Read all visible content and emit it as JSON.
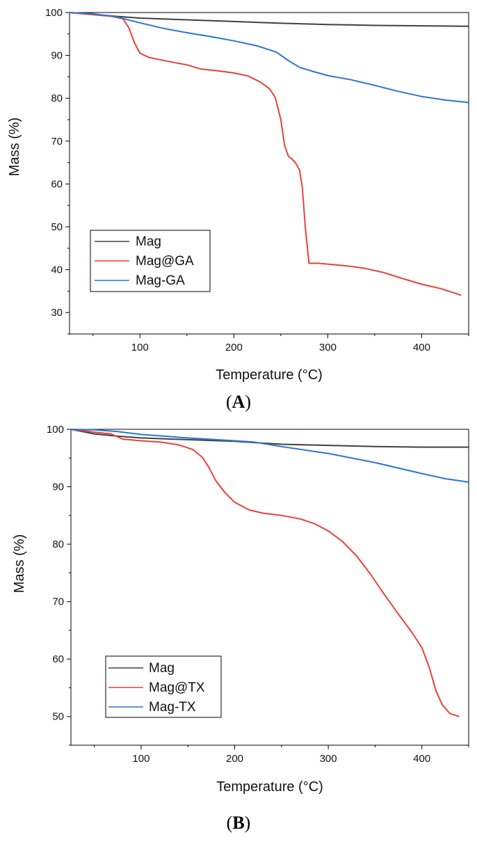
{
  "chart_data": [
    {
      "type": "line",
      "panel_label": "A",
      "xlabel": "Temperature (°C)",
      "ylabel": "Mass (%)",
      "xlim": [
        25,
        450
      ],
      "ylim": [
        25,
        100
      ],
      "xticks": [
        100,
        200,
        300,
        400
      ],
      "yticks": [
        30,
        40,
        50,
        60,
        70,
        80,
        90,
        100
      ],
      "legend_position": "bottom-left",
      "series": [
        {
          "name": "Mag",
          "color": "#404040",
          "points": [
            [
              25,
              100
            ],
            [
              50,
              99.6
            ],
            [
              75,
              99.1
            ],
            [
              100,
              98.7
            ],
            [
              150,
              98.3
            ],
            [
              200,
              97.9
            ],
            [
              250,
              97.5
            ],
            [
              300,
              97.2
            ],
            [
              350,
              97.0
            ],
            [
              400,
              96.9
            ],
            [
              450,
              96.8
            ]
          ]
        },
        {
          "name": "Mag@GA",
          "color": "#e8403a",
          "points": [
            [
              25,
              100
            ],
            [
              50,
              99.5
            ],
            [
              70,
              99.1
            ],
            [
              82,
              98.5
            ],
            [
              88,
              96.5
            ],
            [
              94,
              93
            ],
            [
              100,
              90.5
            ],
            [
              110,
              89.5
            ],
            [
              130,
              88.6
            ],
            [
              150,
              87.8
            ],
            [
              165,
              86.8
            ],
            [
              180,
              86.5
            ],
            [
              200,
              85.9
            ],
            [
              215,
              85.2
            ],
            [
              228,
              83.8
            ],
            [
              238,
              82.2
            ],
            [
              244,
              80.2
            ],
            [
              250,
              75
            ],
            [
              254,
              69
            ],
            [
              258,
              66.5
            ],
            [
              262,
              65.8
            ],
            [
              266,
              64.8
            ],
            [
              270,
              63.2
            ],
            [
              273,
              59
            ],
            [
              276,
              50
            ],
            [
              280,
              41.5
            ],
            [
              290,
              41.5
            ],
            [
              300,
              41.3
            ],
            [
              320,
              40.9
            ],
            [
              340,
              40.3
            ],
            [
              360,
              39.3
            ],
            [
              380,
              37.9
            ],
            [
              400,
              36.6
            ],
            [
              420,
              35.6
            ],
            [
              440,
              34.2
            ],
            [
              442,
              34
            ]
          ]
        },
        {
          "name": "Mag-GA",
          "color": "#2a74d4",
          "points": [
            [
              25,
              100
            ],
            [
              50,
              99.7
            ],
            [
              75,
              99
            ],
            [
              100,
              97.6
            ],
            [
              125,
              96.3
            ],
            [
              150,
              95.3
            ],
            [
              175,
              94.4
            ],
            [
              200,
              93.4
            ],
            [
              225,
              92.2
            ],
            [
              245,
              90.8
            ],
            [
              258,
              88.8
            ],
            [
              270,
              87.2
            ],
            [
              285,
              86.2
            ],
            [
              300,
              85.3
            ],
            [
              325,
              84.3
            ],
            [
              350,
              83.0
            ],
            [
              375,
              81.6
            ],
            [
              400,
              80.4
            ],
            [
              425,
              79.6
            ],
            [
              450,
              79.0
            ]
          ]
        }
      ]
    },
    {
      "type": "line",
      "panel_label": "B",
      "xlabel": "Temperature (°C)",
      "ylabel": "Mass (%)",
      "xlim": [
        25,
        450
      ],
      "ylim": [
        45,
        100
      ],
      "xticks": [
        100,
        200,
        300,
        400
      ],
      "yticks": [
        50,
        60,
        70,
        80,
        90,
        100
      ],
      "legend_position": "bottom-left",
      "series": [
        {
          "name": "Mag",
          "color": "#404040",
          "points": [
            [
              25,
              100
            ],
            [
              50,
              99.2
            ],
            [
              75,
              98.8
            ],
            [
              100,
              98.5
            ],
            [
              150,
              98.2
            ],
            [
              200,
              97.9
            ],
            [
              250,
              97.4
            ],
            [
              300,
              97.2
            ],
            [
              350,
              97.0
            ],
            [
              400,
              96.9
            ],
            [
              450,
              96.9
            ]
          ]
        },
        {
          "name": "Mag@TX",
          "color": "#e8403a",
          "points": [
            [
              25,
              100
            ],
            [
              50,
              99.5
            ],
            [
              68,
              99.2
            ],
            [
              80,
              98.3
            ],
            [
              100,
              98
            ],
            [
              120,
              97.8
            ],
            [
              140,
              97.3
            ],
            [
              155,
              96.5
            ],
            [
              165,
              95.2
            ],
            [
              172,
              93.5
            ],
            [
              180,
              91
            ],
            [
              190,
              88.9
            ],
            [
              200,
              87.3
            ],
            [
              215,
              86
            ],
            [
              230,
              85.4
            ],
            [
              250,
              85
            ],
            [
              270,
              84.4
            ],
            [
              285,
              83.6
            ],
            [
              300,
              82.3
            ],
            [
              315,
              80.5
            ],
            [
              330,
              78
            ],
            [
              345,
              74.8
            ],
            [
              360,
              71.2
            ],
            [
              375,
              67.8
            ],
            [
              390,
              64.5
            ],
            [
              400,
              62
            ],
            [
              408,
              58.5
            ],
            [
              415,
              54.5
            ],
            [
              422,
              52
            ],
            [
              430,
              50.5
            ],
            [
              440,
              50
            ]
          ]
        },
        {
          "name": "Mag-TX",
          "color": "#2a74d4",
          "points": [
            [
              25,
              100
            ],
            [
              50,
              99.9
            ],
            [
              75,
              99.6
            ],
            [
              100,
              99.1
            ],
            [
              150,
              98.5
            ],
            [
              200,
              98
            ],
            [
              220,
              97.8
            ],
            [
              250,
              97
            ],
            [
              300,
              95.8
            ],
            [
              350,
              94.2
            ],
            [
              400,
              92.3
            ],
            [
              425,
              91.4
            ],
            [
              450,
              90.8
            ]
          ]
        }
      ]
    }
  ]
}
